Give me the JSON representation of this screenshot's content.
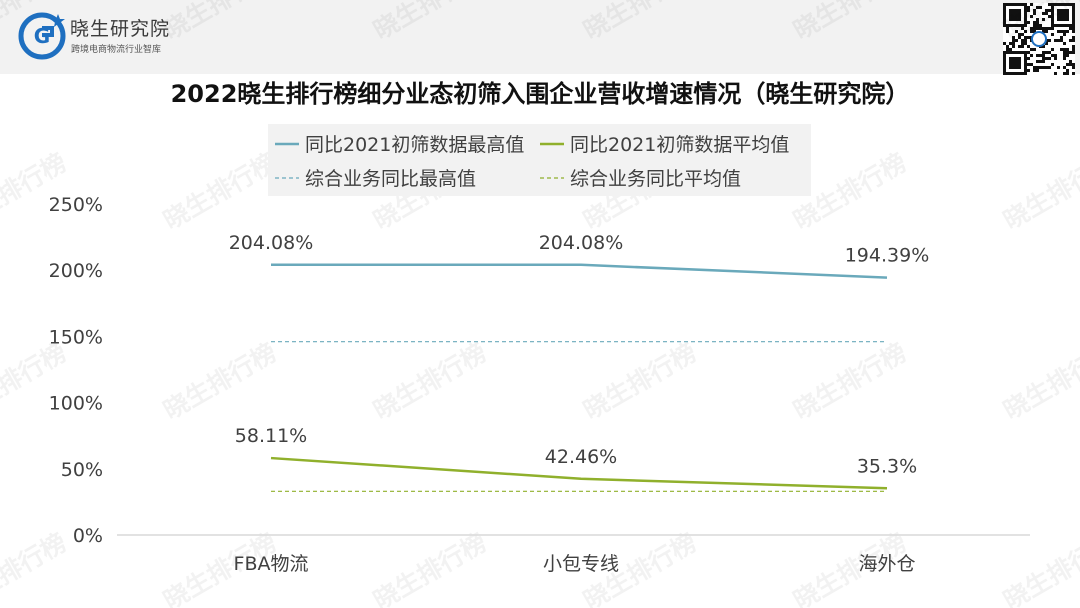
{
  "header": {
    "brand_name": "晓生研究院",
    "brand_tagline": "跨境电商物流行业智库",
    "logo_letter": "G",
    "watermark_text": "晓生排行榜"
  },
  "chart_data": {
    "type": "line",
    "title": "2022晓生排行榜细分业态初筛入围企业营收增速情况（晓生研究院）",
    "categories": [
      "FBA物流",
      "小包专线",
      "海外仓"
    ],
    "series": [
      {
        "name": "同比2021初筛数据最高值",
        "values": [
          204.08,
          204.08,
          194.39
        ],
        "labels": [
          "204.08%",
          "204.08%",
          "194.39%"
        ],
        "color": "#6aa9bb",
        "style": "solid"
      },
      {
        "name": "同比2021初筛数据平均值",
        "values": [
          58.11,
          42.46,
          35.3
        ],
        "labels": [
          "58.11%",
          "42.46%",
          "35.3%"
        ],
        "color": "#90b02c",
        "style": "solid"
      },
      {
        "name": "综合业务同比最高值",
        "values": [
          146,
          146,
          146
        ],
        "color": "#6aa9bb",
        "style": "dashed"
      },
      {
        "name": "综合业务同比平均值",
        "values": [
          33,
          33,
          33
        ],
        "color": "#90b02c",
        "style": "dashed"
      }
    ],
    "yticks": [
      "0%",
      "50%",
      "100%",
      "150%",
      "200%",
      "250%"
    ],
    "ylim": [
      0,
      250
    ],
    "xlabel": "",
    "ylabel": "",
    "grid": false,
    "legend_position": "top"
  },
  "colors": {
    "axis": "#d9d9d9",
    "text": "#404040",
    "legend_bg": "#f2f2f2",
    "logo_blue": "#1e6fc0"
  }
}
